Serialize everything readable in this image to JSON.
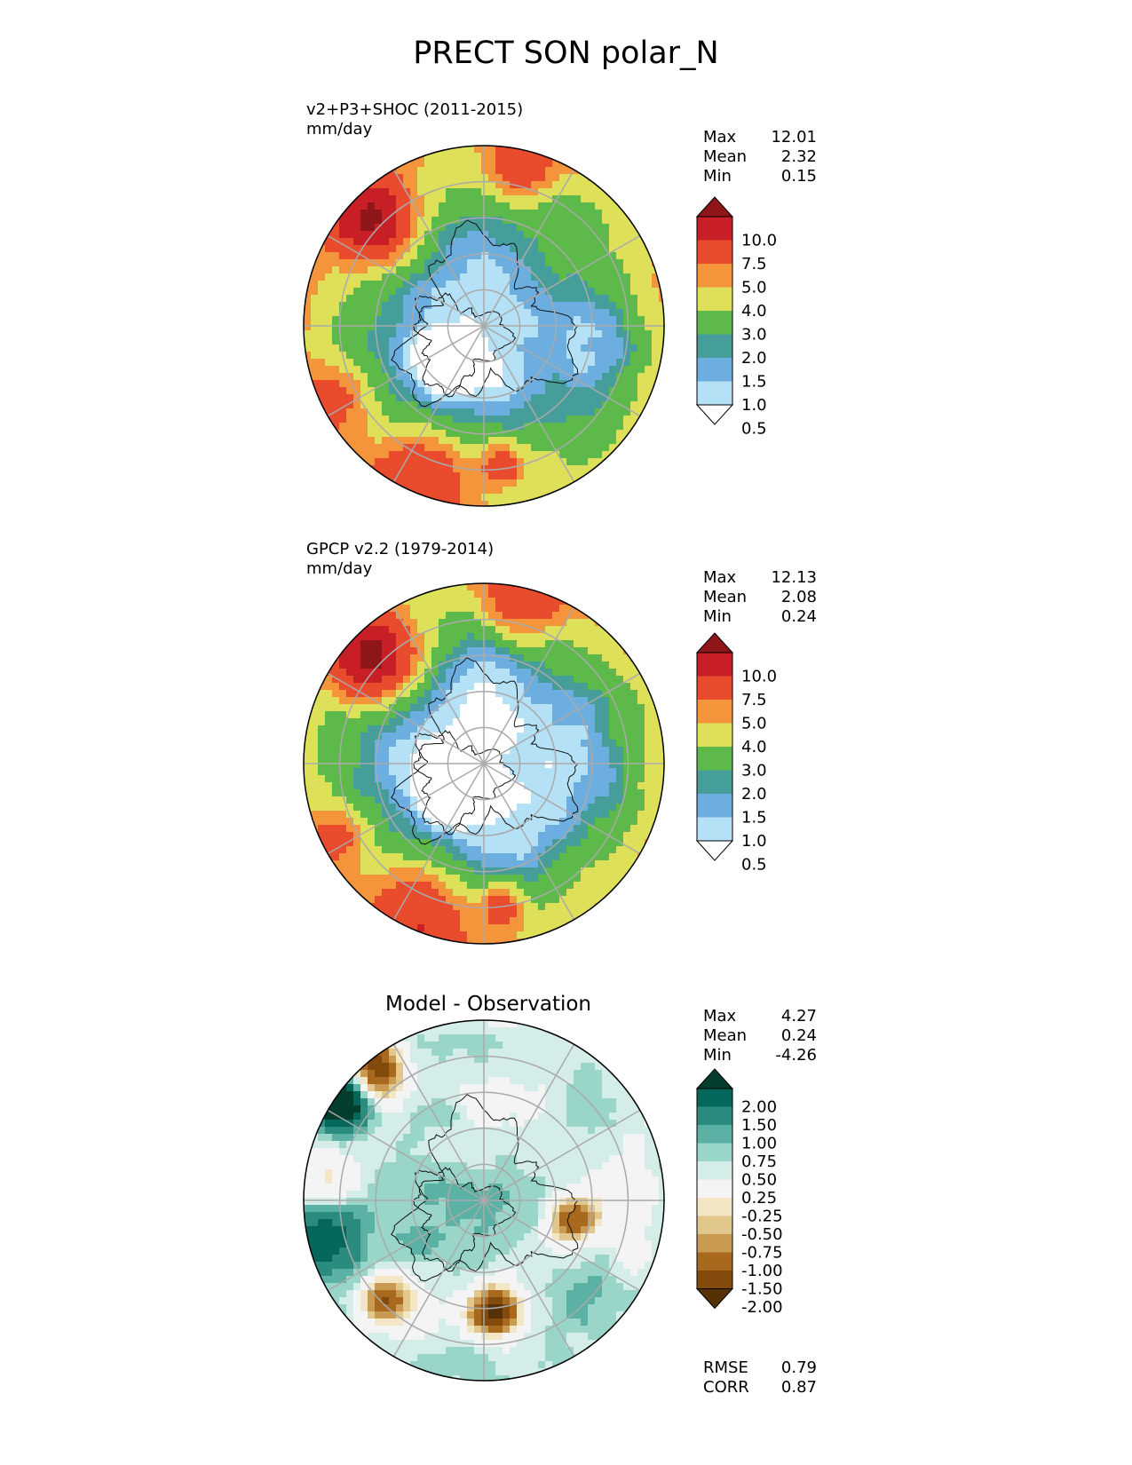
{
  "figure_title": "PRECT SON polar_N",
  "panels": [
    {
      "label": "v2+P3+SHOC (2011-2015)",
      "units": "mm/day",
      "stats": [
        {
          "name": "Max",
          "value": "12.01"
        },
        {
          "name": "Mean",
          "value": "2.32"
        },
        {
          "name": "Min",
          "value": "0.15"
        }
      ]
    },
    {
      "label": "GPCP v2.2 (1979-2014)",
      "units": "mm/day",
      "stats": [
        {
          "name": "Max",
          "value": "12.13"
        },
        {
          "name": "Mean",
          "value": "2.08"
        },
        {
          "name": "Min",
          "value": "0.24"
        }
      ]
    },
    {
      "title": "Model - Observation",
      "stats": [
        {
          "name": "Max",
          "value": "4.27"
        },
        {
          "name": "Mean",
          "value": "0.24"
        },
        {
          "name": "Min",
          "value": "-4.26"
        }
      ],
      "metrics": [
        {
          "name": "RMSE",
          "value": "0.79"
        },
        {
          "name": "CORR",
          "value": "0.87"
        }
      ]
    }
  ],
  "colorbar_precip": {
    "labels": [
      "10.0",
      "7.5",
      "5.0",
      "4.0",
      "3.0",
      "2.0",
      "1.5",
      "1.0",
      "0.5"
    ],
    "colors": [
      "#8e1518",
      "#c81f26",
      "#e94b2d",
      "#f5953b",
      "#dee05a",
      "#5cb94a",
      "#459e99",
      "#6daee0",
      "#b5e1f7",
      "#ffffff"
    ]
  },
  "colorbar_diff": {
    "labels": [
      "2.00",
      "1.50",
      "1.00",
      "0.75",
      "0.50",
      "0.25",
      "-0.25",
      "-0.50",
      "-0.75",
      "-1.00",
      "-1.50",
      "-2.00"
    ],
    "colors": [
      "#033d2e",
      "#05675a",
      "#2a8b7e",
      "#5ab1a4",
      "#9ad5c9",
      "#d4ede9",
      "#f4f4f4",
      "#f3e6c4",
      "#e1c78c",
      "#c99a52",
      "#a8691e",
      "#824a0b",
      "#553105"
    ]
  }
}
